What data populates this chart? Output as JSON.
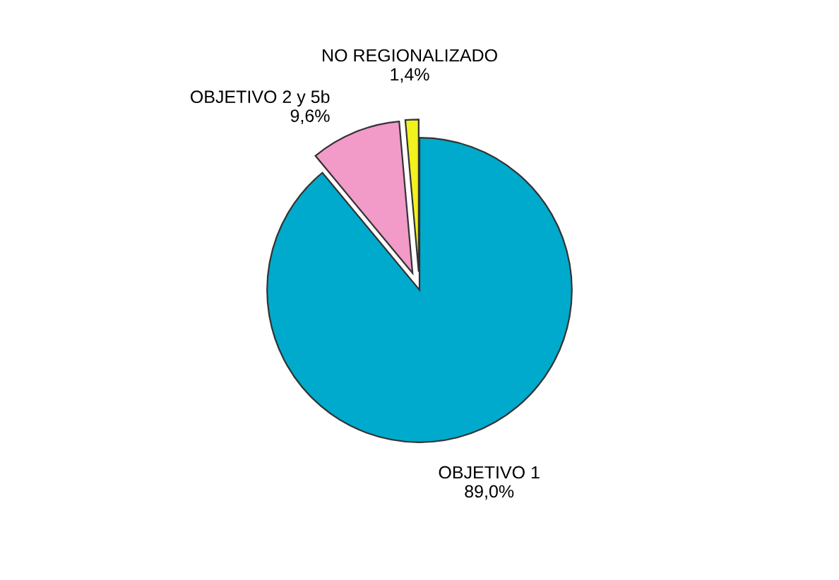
{
  "chart_data": {
    "type": "pie",
    "categories": [
      "OBJETIVO 1",
      "OBJETIVO 2 y 5b",
      "NO REGIONALIZADO"
    ],
    "values": [
      89.0,
      9.6,
      1.4
    ],
    "value_labels": [
      "89,0%",
      "9,6%",
      "1,4%"
    ],
    "colors": [
      "#00aacc",
      "#f29ac8",
      "#f2f21e"
    ],
    "legend": false
  }
}
